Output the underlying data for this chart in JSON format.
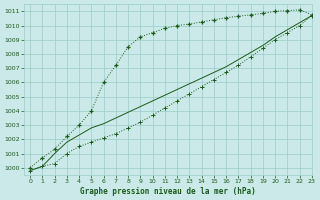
{
  "title": "Graphe pression niveau de la mer (hPa)",
  "xlim": [
    -0.5,
    23
  ],
  "ylim": [
    999.5,
    1011.5
  ],
  "yticks": [
    1000,
    1001,
    1002,
    1003,
    1004,
    1005,
    1006,
    1007,
    1008,
    1009,
    1010,
    1011
  ],
  "xticks": [
    0,
    1,
    2,
    3,
    4,
    5,
    6,
    7,
    8,
    9,
    10,
    11,
    12,
    13,
    14,
    15,
    16,
    17,
    18,
    19,
    20,
    21,
    22,
    23
  ],
  "bg_color": "#cce9e9",
  "grid_color": "#99cccc",
  "line_color": "#1a5c1a",
  "line1_x": [
    0,
    1,
    2,
    3,
    4,
    5,
    6,
    7,
    8,
    9,
    10,
    11,
    12,
    13,
    14,
    15,
    16,
    17,
    18,
    19,
    20,
    21,
    22,
    23
  ],
  "line1_y": [
    1000.0,
    1000.7,
    1001.3,
    1002.2,
    1003.0,
    1004.0,
    1006.0,
    1007.2,
    1008.5,
    1009.2,
    1009.5,
    1009.8,
    1010.0,
    1010.1,
    1010.25,
    1010.4,
    1010.55,
    1010.65,
    1010.75,
    1010.85,
    1011.0,
    1011.05,
    1011.1,
    1010.75
  ],
  "line2_x": [
    0,
    1,
    2,
    3,
    4,
    5,
    6,
    7,
    8,
    9,
    10,
    11,
    12,
    13,
    14,
    15,
    16,
    17,
    18,
    19,
    20,
    21,
    22,
    23
  ],
  "line2_y": [
    999.8,
    1000.1,
    1000.3,
    1001.0,
    1001.5,
    1001.8,
    1002.1,
    1002.4,
    1002.8,
    1003.2,
    1003.7,
    1004.2,
    1004.7,
    1005.2,
    1005.7,
    1006.2,
    1006.7,
    1007.2,
    1007.8,
    1008.4,
    1009.0,
    1009.5,
    1010.0,
    1010.7
  ],
  "line3_x": [
    0,
    1,
    2,
    3,
    4,
    5,
    6,
    7,
    8,
    9,
    10,
    11,
    12,
    13,
    14,
    15,
    16,
    17,
    18,
    19,
    20,
    21,
    22,
    23
  ],
  "line3_y": [
    999.8,
    1000.1,
    1001.0,
    1001.8,
    1002.3,
    1002.8,
    1003.1,
    1003.5,
    1003.9,
    1004.3,
    1004.7,
    1005.1,
    1005.5,
    1005.9,
    1006.3,
    1006.7,
    1007.1,
    1007.6,
    1008.1,
    1008.6,
    1009.2,
    1009.7,
    1010.2,
    1010.7
  ]
}
